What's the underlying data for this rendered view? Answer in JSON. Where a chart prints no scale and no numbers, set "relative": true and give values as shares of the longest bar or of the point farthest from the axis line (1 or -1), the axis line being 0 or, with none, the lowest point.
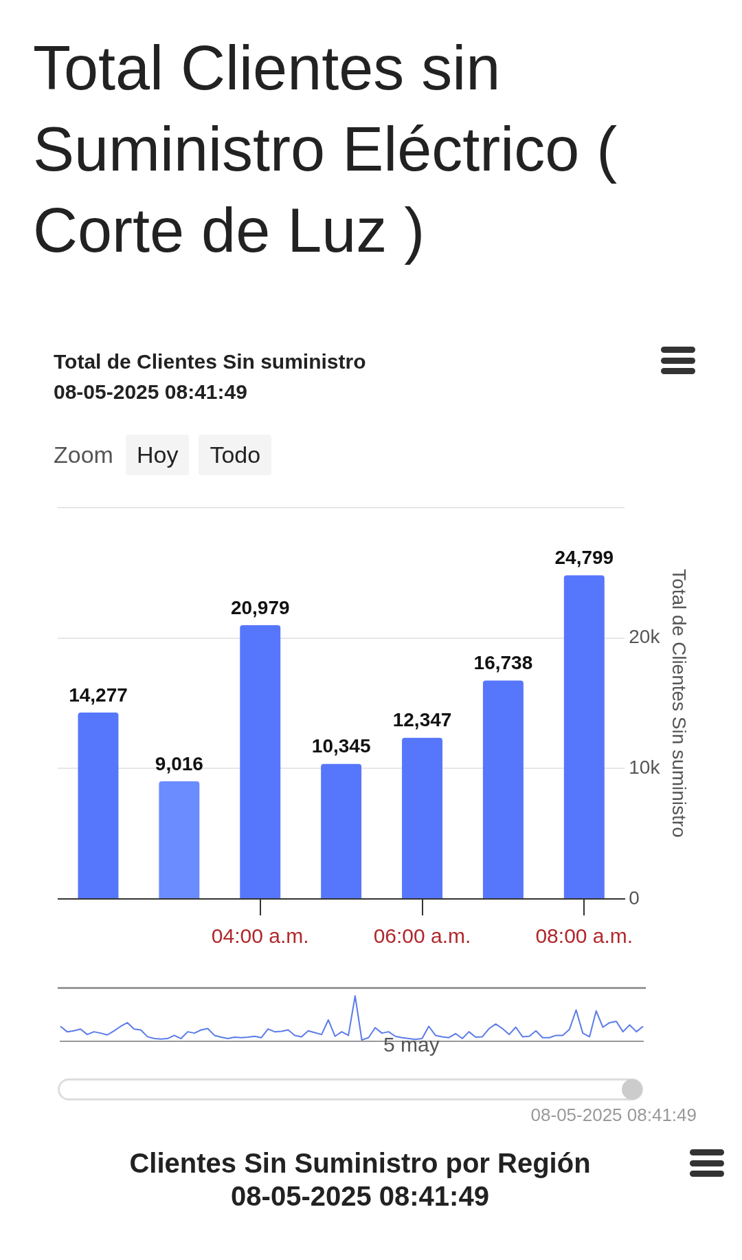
{
  "chart_data": [
    {
      "type": "bar",
      "title": "Total Clientes sin Suministro Eléctrico ( Corte de Luz )",
      "subtitle": "Total de Clientes Sin suministro\n08-05-2025 08:41:49",
      "annotations": [
        "Zoom",
        "Hoy",
        "Todo"
      ],
      "categories": [
        null,
        null,
        "04:00 a.m.",
        null,
        "06:00 a.m.",
        null,
        "08:00 a.m."
      ],
      "values": [
        14277,
        9016,
        20979,
        10345,
        12347,
        16738,
        24799
      ],
      "colors": [
        "#5677fb",
        "#6b8cff",
        "#5677fb",
        "#5677fb",
        "#5677fb",
        "#5677fb",
        "#5677fb"
      ],
      "ylim": [
        0,
        30000
      ],
      "yticks": [
        0,
        {
          "value": 10000,
          "label": "10k"
        },
        {
          "value": 20000,
          "label": "20k"
        },
        {
          "value": 30000,
          "label": null
        }
      ],
      "value_labels": [
        "14,277",
        "9,016",
        "20,979",
        "10,345",
        "12,347",
        "16,738",
        "24,799"
      ],
      "ylabel": "Total de Clientes Sin suministro",
      "grid": "y"
    },
    {
      "type": "line",
      "relative": true,
      "color": "#5b7be8",
      "annotations": [
        "08-05-2025 08:41:49",
        "Clientes Sin Suministro por Región\n08-05-2025 08:41:49",
        "5 may"
      ],
      "categories": [
        null,
        null,
        null,
        null,
        null,
        null,
        null,
        null,
        null,
        null,
        null,
        null,
        null,
        null,
        null,
        null,
        null,
        null,
        null,
        null,
        null,
        null,
        null,
        null,
        null,
        null,
        null,
        null,
        null,
        null,
        null,
        null,
        null,
        null,
        null,
        null,
        null,
        null,
        null,
        null,
        null,
        null,
        null,
        null,
        null,
        null,
        null,
        null,
        null,
        null,
        null,
        null,
        null,
        null,
        null,
        null,
        null,
        null,
        null,
        null,
        null,
        null,
        null,
        null,
        null,
        null,
        null,
        null,
        null,
        null,
        null,
        null,
        null,
        null,
        null,
        null,
        null,
        null,
        null,
        null,
        null,
        null,
        null,
        null,
        null,
        null,
        null,
        null
      ],
      "values": [
        0.33,
        0.21,
        0.23,
        0.27,
        0.15,
        0.21,
        0.18,
        0.14,
        0.23,
        0.33,
        0.41,
        0.27,
        0.25,
        0.1,
        0.06,
        0.05,
        0.06,
        0.13,
        0.06,
        0.21,
        0.18,
        0.25,
        0.28,
        0.13,
        0.09,
        0.06,
        0.09,
        0.08,
        0.09,
        0.11,
        0.08,
        0.27,
        0.21,
        0.22,
        0.25,
        0.13,
        0.1,
        0.23,
        0.19,
        0.15,
        0.47,
        0.11,
        0.21,
        0.13,
        1,
        0.03,
        0.08,
        0.3,
        0.18,
        0.21,
        0.11,
        0.08,
        0.06,
        0.04,
        0.06,
        0.33,
        0.13,
        0.1,
        0.08,
        0.17,
        0.06,
        0.21,
        0.09,
        0.1,
        0.28,
        0.38,
        0.28,
        0.15,
        0.31,
        0.1,
        0.11,
        0.23,
        0.08,
        0.08,
        0.13,
        0.13,
        0.26,
        0.69,
        0.18,
        0.1,
        0.67,
        0.31,
        0.41,
        0.44,
        0.21,
        0.36,
        0.21,
        0.33
      ]
    }
  ]
}
